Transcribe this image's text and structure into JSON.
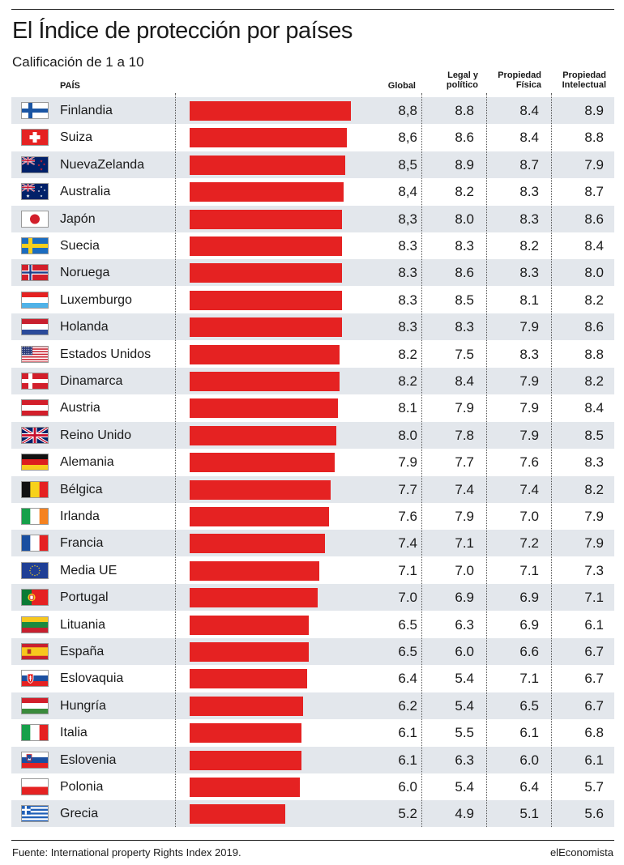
{
  "header": {
    "title": "El Índice de protección por países",
    "subtitle": "Calificación de 1 a 10"
  },
  "columns": {
    "country": "PAÍS",
    "global": "Global",
    "legal": [
      "Legal y",
      "político"
    ],
    "fisica": [
      "Propiedad",
      "Física"
    ],
    "intelectual": [
      "Propiedad",
      "Intelectual"
    ]
  },
  "colors": {
    "bar": "#e52222",
    "row_shade": "#e3e7ec"
  },
  "chart_data": {
    "type": "bar",
    "orientation": "horizontal",
    "title": "El Índice de protección por países",
    "subtitle": "Calificación de 1 a 10",
    "xlim": [
      0,
      10
    ],
    "grid": false,
    "categories": [
      "Finlandia",
      "Suiza",
      "NuevaZelanda",
      "Australia",
      "Japón",
      "Suecia",
      "Noruega",
      "Luxemburgo",
      "Holanda",
      "Estados Unidos",
      "Dinamarca",
      "Austria",
      "Reino Unido",
      "Alemania",
      "Bélgica",
      "Irlanda",
      "Francia",
      "Media UE",
      "Portugal",
      "Lituania",
      "España",
      "Eslovaquia",
      "Hungría",
      "Italia",
      "Eslovenia",
      "Polonia",
      "Grecia"
    ],
    "flags": [
      "finland-flag-icon",
      "switzerland-flag-icon",
      "new-zealand-flag-icon",
      "australia-flag-icon",
      "japan-flag-icon",
      "sweden-flag-icon",
      "norway-flag-icon",
      "luxembourg-flag-icon",
      "netherlands-flag-icon",
      "usa-flag-icon",
      "denmark-flag-icon",
      "austria-flag-icon",
      "uk-flag-icon",
      "germany-flag-icon",
      "belgium-flag-icon",
      "ireland-flag-icon",
      "france-flag-icon",
      "eu-flag-icon",
      "portugal-flag-icon",
      "lithuania-flag-icon",
      "spain-flag-icon",
      "slovakia-flag-icon",
      "hungary-flag-icon",
      "italy-flag-icon",
      "slovenia-flag-icon",
      "poland-flag-icon",
      "greece-flag-icon"
    ],
    "global_labels": [
      "8,8",
      "8,6",
      "8,5",
      "8,4",
      "8,3",
      "8.3",
      "8.3",
      "8.3",
      "8.3",
      "8.2",
      "8.2",
      "8.1",
      "8.0",
      "7.9",
      "7.7",
      "7.6",
      "7.4",
      "7.1",
      "7.0",
      "6.5",
      "6.5",
      "6.4",
      "6.2",
      "6.1",
      "6.1",
      "6.0",
      "5.2"
    ],
    "series": [
      {
        "name": "Global",
        "values": [
          8.8,
          8.6,
          8.5,
          8.4,
          8.3,
          8.3,
          8.3,
          8.3,
          8.3,
          8.2,
          8.2,
          8.1,
          8.0,
          7.9,
          7.7,
          7.6,
          7.4,
          7.1,
          7.0,
          6.5,
          6.5,
          6.4,
          6.2,
          6.1,
          6.1,
          6.0,
          5.2
        ]
      },
      {
        "name": "Legal y político",
        "values": [
          8.8,
          8.6,
          8.9,
          8.2,
          8.0,
          8.3,
          8.6,
          8.5,
          8.3,
          7.5,
          8.4,
          7.9,
          7.8,
          7.7,
          7.4,
          7.9,
          7.1,
          7.0,
          6.9,
          6.3,
          6.0,
          5.4,
          5.4,
          5.5,
          6.3,
          5.4,
          4.9
        ]
      },
      {
        "name": "Propiedad Física",
        "values": [
          8.4,
          8.4,
          8.7,
          8.3,
          8.3,
          8.2,
          8.3,
          8.1,
          7.9,
          8.3,
          7.9,
          7.9,
          7.9,
          7.6,
          7.4,
          7.0,
          7.2,
          7.1,
          6.9,
          6.9,
          6.6,
          7.1,
          6.5,
          6.1,
          6.0,
          6.4,
          5.1
        ]
      },
      {
        "name": "Propiedad Intelectual",
        "values": [
          8.9,
          8.8,
          7.9,
          8.7,
          8.6,
          8.4,
          8.0,
          8.2,
          8.6,
          8.8,
          8.2,
          8.4,
          8.5,
          8.3,
          8.2,
          7.9,
          7.9,
          7.3,
          7.1,
          6.1,
          6.7,
          6.7,
          6.7,
          6.8,
          6.1,
          5.7,
          5.6
        ]
      }
    ]
  },
  "footer": {
    "source": "Fuente: International property Rights Index 2019.",
    "brand": "elEconomista"
  }
}
